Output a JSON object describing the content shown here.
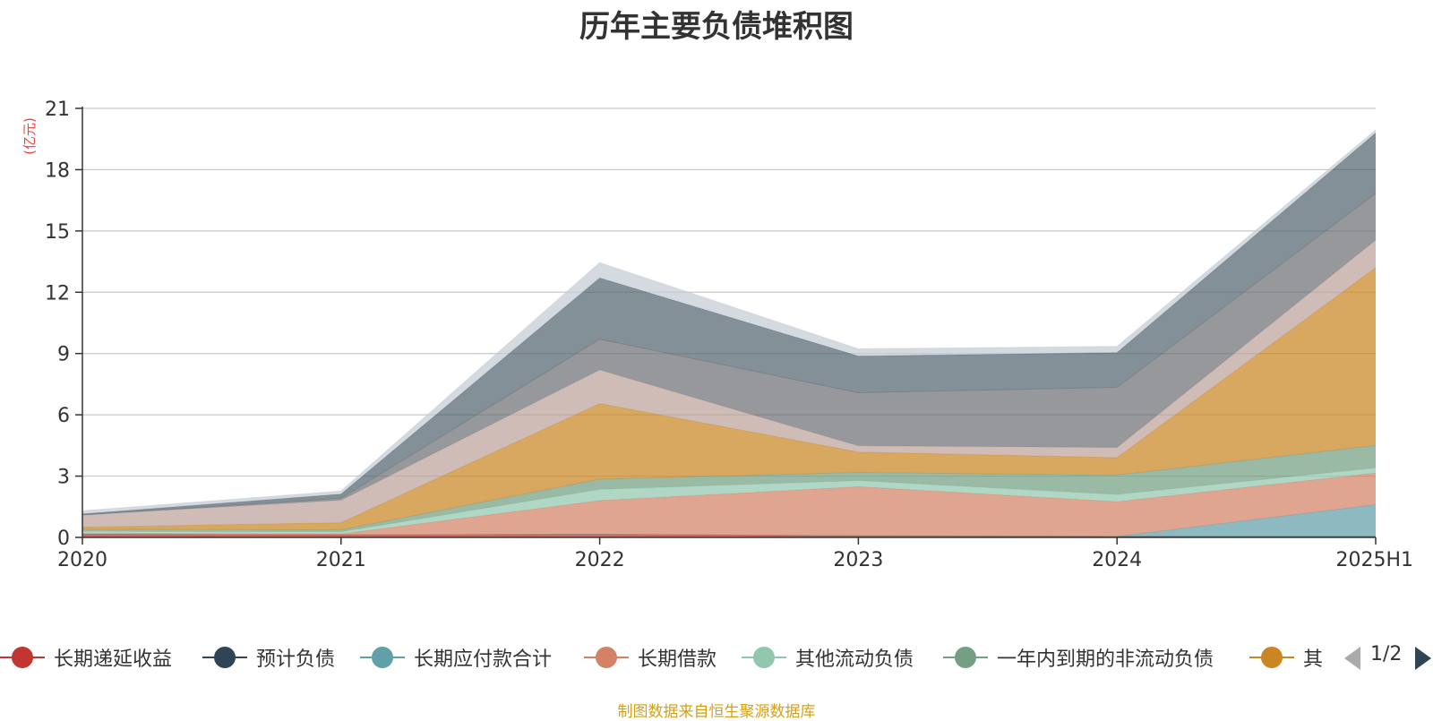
{
  "chart_data": {
    "type": "area",
    "title": "历年主要负债堆积图",
    "ylabel": "(亿元)",
    "xlabel": "",
    "x": [
      "2020",
      "2021",
      "2022",
      "2023",
      "2024",
      "2025H1"
    ],
    "ylim": [
      0,
      21
    ],
    "yticks": [
      0,
      3,
      6,
      9,
      12,
      15,
      18,
      21
    ],
    "grid": true,
    "stacked": true,
    "legend_position": "bottom",
    "series": [
      {
        "name": "长期递延收益",
        "color": "#c23531",
        "values": [
          0.15,
          0.12,
          0.15,
          0.08,
          0.05,
          0.05
        ]
      },
      {
        "name": "预计负债",
        "color": "#2f4554",
        "values": [
          0,
          0,
          0,
          0,
          0,
          0
        ]
      },
      {
        "name": "长期应付款合计",
        "color": "#61a0a8",
        "values": [
          0,
          0,
          0,
          0,
          0,
          1.55
        ]
      },
      {
        "name": "长期借款",
        "color": "#d48265",
        "values": [
          0.05,
          0.05,
          1.65,
          2.4,
          1.7,
          1.55
        ]
      },
      {
        "name": "其他流动负债",
        "color": "#91c7ae",
        "values": [
          0.1,
          0.1,
          0.55,
          0.3,
          0.35,
          0.25
        ]
      },
      {
        "name": "一年内到期的非流动负债",
        "color": "#749f83",
        "values": [
          0.1,
          0.1,
          0.5,
          0.4,
          0.95,
          1.1
        ]
      },
      {
        "name": "其",
        "color": "#ca8622",
        "values": [
          0.1,
          0.35,
          3.7,
          1.0,
          0.85,
          8.7
        ]
      },
      {
        "name": "",
        "color": "#bda29a",
        "values": [
          0.6,
          1.1,
          1.65,
          0.3,
          0.5,
          1.35
        ]
      },
      {
        "name": "",
        "color": "#6e7074",
        "values": [
          0,
          0.1,
          1.5,
          2.6,
          2.95,
          2.3
        ]
      },
      {
        "name": "",
        "color": "#546570",
        "values": [
          0.05,
          0.2,
          3.0,
          1.8,
          1.7,
          2.95
        ]
      },
      {
        "name": "",
        "color": "#c4ccd3",
        "values": [
          0.15,
          0.15,
          0.75,
          0.35,
          0.3,
          0.15
        ]
      }
    ]
  },
  "legend": {
    "items": [
      {
        "label": "长期递延收益",
        "color": "#c23531"
      },
      {
        "label": "预计负债",
        "color": "#2f4554"
      },
      {
        "label": "长期应付款合计",
        "color": "#61a0a8"
      },
      {
        "label": "长期借款",
        "color": "#d48265"
      },
      {
        "label": "其他流动负债",
        "color": "#91c7ae"
      },
      {
        "label": "一年内到期的非流动负债",
        "color": "#749f83"
      },
      {
        "label": "其",
        "color": "#ca8622"
      }
    ],
    "page": "1/2"
  },
  "source_note": "制图数据来自恒生聚源数据库"
}
